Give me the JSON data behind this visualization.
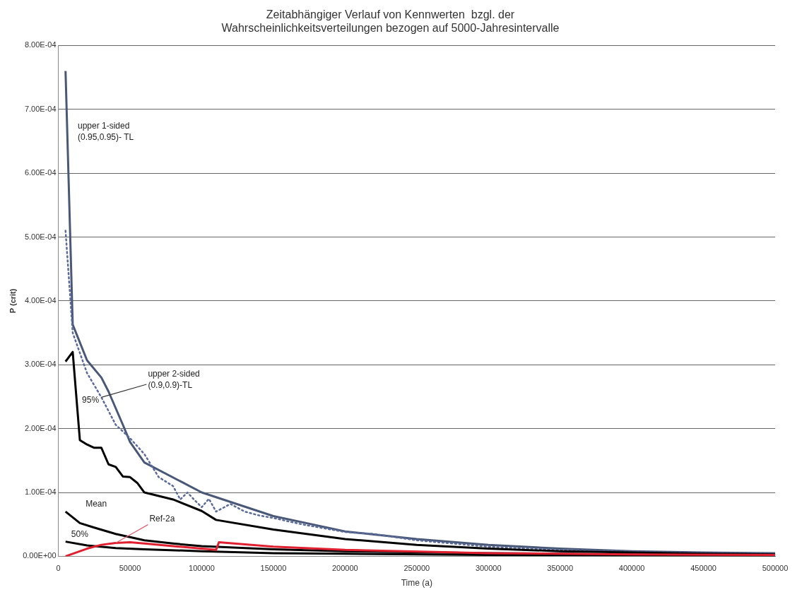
{
  "chart_data": {
    "type": "line",
    "title": "Zeitabhängiger Verlauf von Kennwerten  bzgl. der\nWahrscheinlichkeitsverteilungen bezogen auf 5000-Jahresintervalle",
    "xlabel": "Time (a)",
    "ylabel": "P (crit)",
    "xlim": [
      0,
      500000
    ],
    "xticks": [
      0,
      50000,
      100000,
      150000,
      200000,
      250000,
      300000,
      350000,
      400000,
      450000,
      500000
    ],
    "ylim": [
      0,
      0.0008
    ],
    "yticks": [
      {
        "value": 0,
        "label": "0.00E+00"
      },
      {
        "value": 0.0001,
        "label": "1.00E-04"
      },
      {
        "value": 0.0002,
        "label": "2.00E-04"
      },
      {
        "value": 0.0003,
        "label": "3.00E-04"
      },
      {
        "value": 0.0004,
        "label": "4.00E-04"
      },
      {
        "value": 0.0005,
        "label": "5.00E-04"
      },
      {
        "value": 0.0006,
        "label": "6.00E-04"
      },
      {
        "value": 0.0007,
        "label": "7.00E-04"
      },
      {
        "value": 0.0008,
        "label": "8.00E-04"
      }
    ],
    "grid": "y",
    "legend": false,
    "marker": "none",
    "series": [
      {
        "color": "#4a5878",
        "line_style": "solid",
        "x": [
          5000,
          10000,
          20000,
          30000,
          35000,
          45000,
          50000,
          60000,
          100000,
          150000,
          200000,
          250000,
          300000,
          350000,
          400000,
          450000,
          500000
        ],
        "values": [
          0.00076,
          0.000363,
          0.000307,
          0.00028,
          0.000258,
          0.000206,
          0.000179,
          0.000147,
          0.0001,
          6.3e-05,
          3.9e-05,
          2.7e-05,
          1.8e-05,
          1.2e-05,
          8e-06,
          6e-06,
          5e-06
        ]
      },
      {
        "color": "#5a6a9a",
        "line_style": "dotted",
        "x": [
          5000,
          10000,
          20000,
          30000,
          40000,
          50000,
          60000,
          70000,
          80000,
          85000,
          90000,
          95000,
          100000,
          105000,
          110000,
          120000,
          130000,
          140000,
          150000,
          170000,
          190000,
          200000,
          220000,
          250000,
          300000,
          350000,
          400000,
          450000,
          500000
        ],
        "values": [
          0.00051,
          0.00035,
          0.000287,
          0.000249,
          0.000206,
          0.000185,
          0.00016,
          0.000124,
          0.00011,
          8.9e-05,
          0.0001,
          8.8e-05,
          7.7e-05,
          9e-05,
          7e-05,
          8.2e-05,
          7e-05,
          6.4e-05,
          6e-05,
          5e-05,
          4.2e-05,
          3.8e-05,
          3.5e-05,
          2.5e-05,
          1.5e-05,
          1e-05,
          7e-06,
          5e-06,
          4e-06
        ]
      },
      {
        "color": "#000000",
        "line_style": "solid",
        "x": [
          5000,
          10000,
          15000,
          20000,
          25000,
          30000,
          35000,
          40000,
          45000,
          50000,
          55000,
          60000,
          80000,
          100000,
          110000,
          150000,
          200000,
          250000,
          300000,
          350000,
          400000,
          450000,
          500000
        ],
        "values": [
          0.000305,
          0.00032,
          0.000182,
          0.000175,
          0.00017,
          0.00017,
          0.000144,
          0.00014,
          0.000125,
          0.000124,
          0.000115,
          0.0001,
          8.9e-05,
          7.1e-05,
          5.7e-05,
          4.2e-05,
          2.7e-05,
          1.8e-05,
          1.2e-05,
          8e-06,
          6e-06,
          4e-06,
          3e-06
        ]
      },
      {
        "color": "#000000",
        "line_style": "solid",
        "x": [
          5000,
          15000,
          25000,
          40000,
          60000,
          80000,
          100000,
          150000,
          200000,
          300000,
          400000,
          500000
        ],
        "values": [
          7e-05,
          5.2e-05,
          4.5e-05,
          3.5e-05,
          2.5e-05,
          2e-05,
          1.6e-05,
          1.1e-05,
          8e-06,
          5e-06,
          3e-06,
          2e-06
        ]
      },
      {
        "color": "#000000",
        "line_style": "solid",
        "x": [
          5000,
          20000,
          40000,
          60000,
          100000,
          150000,
          200000,
          300000,
          500000
        ],
        "values": [
          2.3e-05,
          1.7e-05,
          1.3e-05,
          1.1e-05,
          8e-06,
          5e-06,
          4e-06,
          2e-06,
          1e-06
        ]
      },
      {
        "color": "#e02030",
        "line_style": "solid",
        "x": [
          5000,
          20000,
          30000,
          40000,
          50000,
          60000,
          80000,
          100000,
          110000,
          112000,
          150000,
          200000,
          300000,
          400000,
          500000
        ],
        "values": [
          0,
          1.2e-05,
          1.8e-05,
          2.1e-05,
          2.2e-05,
          2e-05,
          1.6e-05,
          1.2e-05,
          1e-05,
          2.2e-05,
          1.5e-05,
          1e-05,
          5e-06,
          3e-06,
          2e-06
        ]
      }
    ],
    "annotations": [
      "upper 1-sided\n(0.95,0.95)- TL",
      {
        "text": "upper 2-sided\n(0.9,0.9)-TL",
        "x": 30000,
        "y": 0.000249
      },
      "95%",
      "Mean",
      {
        "text": "Ref-2a",
        "x": 40000,
        "y": 2.1e-05
      },
      "50%"
    ]
  }
}
